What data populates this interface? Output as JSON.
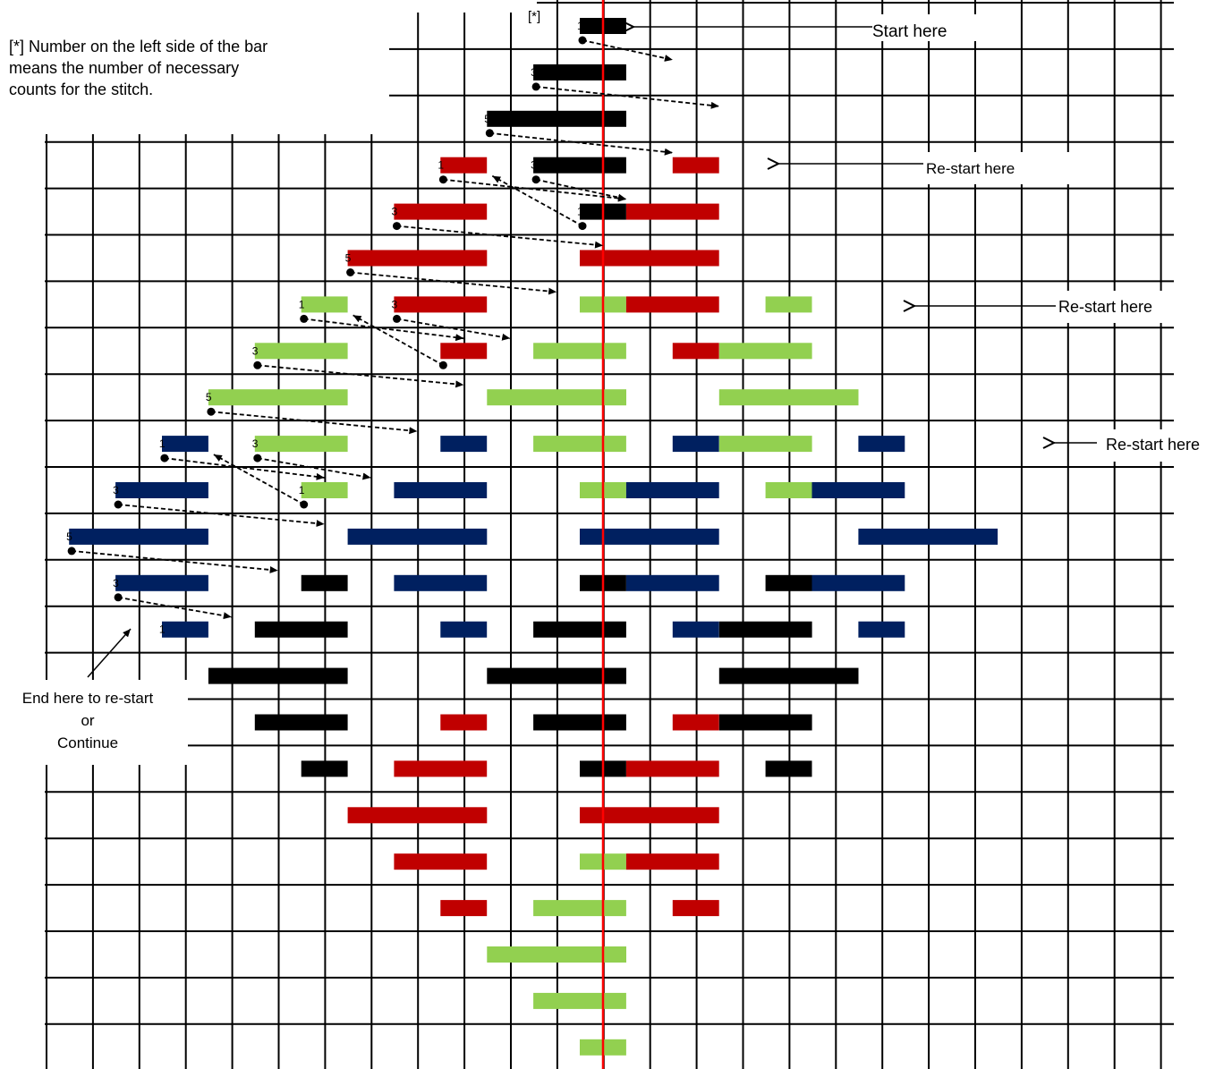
{
  "palette": {
    "black": "#000000",
    "red": "#c00000",
    "green": "#92d050",
    "navy": "#002060",
    "center_line": "#ff0000"
  },
  "labels": {
    "star_marker": "[*]",
    "footnote": "[*] Number on the left side of the bar\nmeans the number of necessary\ncounts for the stitch.",
    "start_here": "Start here",
    "restart_1": "Re-start here",
    "restart_2": "Re-start here",
    "restart_3": "Re-start here",
    "end_note": "End here to re-start\nor\nContinue"
  },
  "pattern": {
    "rows": [
      [
        [
          "black",
          0,
          1
        ]
      ],
      [
        [
          "black",
          -2,
          3
        ]
      ],
      [
        [
          "black",
          -4,
          5
        ]
      ],
      [
        [
          "red",
          -6,
          1
        ],
        [
          "black",
          -2,
          3
        ],
        [
          "red",
          4,
          1
        ]
      ],
      [
        [
          "red",
          -8,
          3
        ],
        [
          "black",
          0,
          1
        ],
        [
          "red",
          2,
          3
        ]
      ],
      [
        [
          "red",
          -10,
          5
        ],
        [
          "red",
          0,
          5
        ]
      ],
      [
        [
          "green",
          -12,
          1
        ],
        [
          "red",
          -8,
          3
        ],
        [
          "green",
          0,
          1
        ],
        [
          "red",
          2,
          3
        ],
        [
          "green",
          8,
          1
        ]
      ],
      [
        [
          "green",
          -14,
          3
        ],
        [
          "red",
          -6,
          1
        ],
        [
          "green",
          -2,
          3
        ],
        [
          "red",
          4,
          1
        ],
        [
          "green",
          6,
          3
        ]
      ],
      [
        [
          "green",
          -16,
          5
        ],
        [
          "green",
          -4,
          5
        ],
        [
          "green",
          6,
          5
        ]
      ],
      [
        [
          "navy",
          -18,
          1
        ],
        [
          "green",
          -14,
          3
        ],
        [
          "navy",
          -6,
          1
        ],
        [
          "green",
          -2,
          3
        ],
        [
          "navy",
          4,
          1
        ],
        [
          "green",
          6,
          3
        ],
        [
          "navy",
          12,
          1
        ]
      ],
      [
        [
          "navy",
          -20,
          3
        ],
        [
          "green",
          -12,
          1
        ],
        [
          "navy",
          -8,
          3
        ],
        [
          "green",
          0,
          1
        ],
        [
          "navy",
          2,
          3
        ],
        [
          "green",
          8,
          1
        ],
        [
          "navy",
          10,
          3
        ]
      ],
      [
        [
          "navy",
          -22,
          5
        ],
        [
          "navy",
          -10,
          5
        ],
        [
          "navy",
          0,
          5
        ],
        [
          "navy",
          12,
          5
        ]
      ],
      [
        [
          "navy",
          -20,
          3
        ],
        [
          "black",
          -12,
          1
        ],
        [
          "navy",
          -8,
          3
        ],
        [
          "black",
          0,
          1
        ],
        [
          "navy",
          2,
          3
        ],
        [
          "black",
          8,
          1
        ],
        [
          "navy",
          10,
          3
        ]
      ],
      [
        [
          "navy",
          -18,
          1
        ],
        [
          "black",
          -14,
          3
        ],
        [
          "navy",
          -6,
          1
        ],
        [
          "black",
          -2,
          3
        ],
        [
          "navy",
          4,
          1
        ],
        [
          "black",
          6,
          3
        ],
        [
          "navy",
          12,
          1
        ]
      ],
      [
        [
          "black",
          -16,
          5
        ],
        [
          "black",
          -4,
          5
        ],
        [
          "black",
          6,
          5
        ]
      ],
      [
        [
          "black",
          -14,
          3
        ],
        [
          "red",
          -6,
          1
        ],
        [
          "black",
          -2,
          3
        ],
        [
          "red",
          4,
          1
        ],
        [
          "black",
          6,
          3
        ]
      ],
      [
        [
          "black",
          -12,
          1
        ],
        [
          "red",
          -8,
          3
        ],
        [
          "black",
          0,
          1
        ],
        [
          "red",
          2,
          3
        ],
        [
          "black",
          8,
          1
        ]
      ],
      [
        [
          "red",
          -10,
          5
        ],
        [
          "red",
          0,
          5
        ]
      ],
      [
        [
          "red",
          -8,
          3
        ],
        [
          "green",
          0,
          1
        ],
        [
          "red",
          2,
          3
        ]
      ],
      [
        [
          "red",
          -6,
          1
        ],
        [
          "green",
          -2,
          3
        ],
        [
          "red",
          4,
          1
        ]
      ],
      [
        [
          "green",
          -4,
          5
        ]
      ],
      [
        [
          "green",
          -2,
          3
        ]
      ],
      [
        [
          "green",
          0,
          1
        ]
      ]
    ],
    "counts": [
      {
        "row": 0,
        "col": -1,
        "text": "1"
      },
      {
        "row": 1,
        "col": -3,
        "text": "3"
      },
      {
        "row": 2,
        "col": -5,
        "text": "5"
      },
      {
        "row": 3,
        "col": -7,
        "text": "1"
      },
      {
        "row": 3,
        "col": -3,
        "text": "3"
      },
      {
        "row": 4,
        "col": -9,
        "text": "3"
      },
      {
        "row": 4,
        "col": -1,
        "text": "1"
      },
      {
        "row": 5,
        "col": -11,
        "text": "5"
      },
      {
        "row": 6,
        "col": -13,
        "text": "1"
      },
      {
        "row": 6,
        "col": -9,
        "text": "3"
      },
      {
        "row": 7,
        "col": -15,
        "text": "3"
      },
      {
        "row": 8,
        "col": -17,
        "text": "5"
      },
      {
        "row": 9,
        "col": -19,
        "text": "1"
      },
      {
        "row": 9,
        "col": -15,
        "text": "3"
      },
      {
        "row": 10,
        "col": -21,
        "text": "3"
      },
      {
        "row": 10,
        "col": -13,
        "text": "1"
      },
      {
        "row": 11,
        "col": -23,
        "text": "5"
      },
      {
        "row": 12,
        "col": -21,
        "text": "3"
      },
      {
        "row": 13,
        "col": -19,
        "text": "1"
      }
    ],
    "arrows": [
      [
        0,
        -1,
        1,
        2
      ],
      [
        1,
        -3,
        2,
        4
      ],
      [
        2,
        -5,
        3,
        2
      ],
      [
        3,
        -7,
        4,
        0
      ],
      [
        3,
        -3,
        4,
        0
      ],
      [
        4,
        -9,
        5,
        -1
      ],
      [
        4,
        -1,
        3,
        -5
      ],
      [
        5,
        -11,
        6,
        -3
      ],
      [
        6,
        -13,
        7,
        -7
      ],
      [
        6,
        -9,
        7,
        -5
      ],
      [
        7,
        -15,
        8,
        -7
      ],
      [
        7,
        -7,
        6,
        -11
      ],
      [
        8,
        -17,
        9,
        -9
      ],
      [
        9,
        -19,
        10,
        -13
      ],
      [
        9,
        -15,
        10,
        -11
      ],
      [
        10,
        -21,
        11,
        -13
      ],
      [
        10,
        -13,
        9,
        -17
      ],
      [
        11,
        -23,
        12,
        -15
      ],
      [
        12,
        -21,
        13,
        -17
      ]
    ]
  }
}
